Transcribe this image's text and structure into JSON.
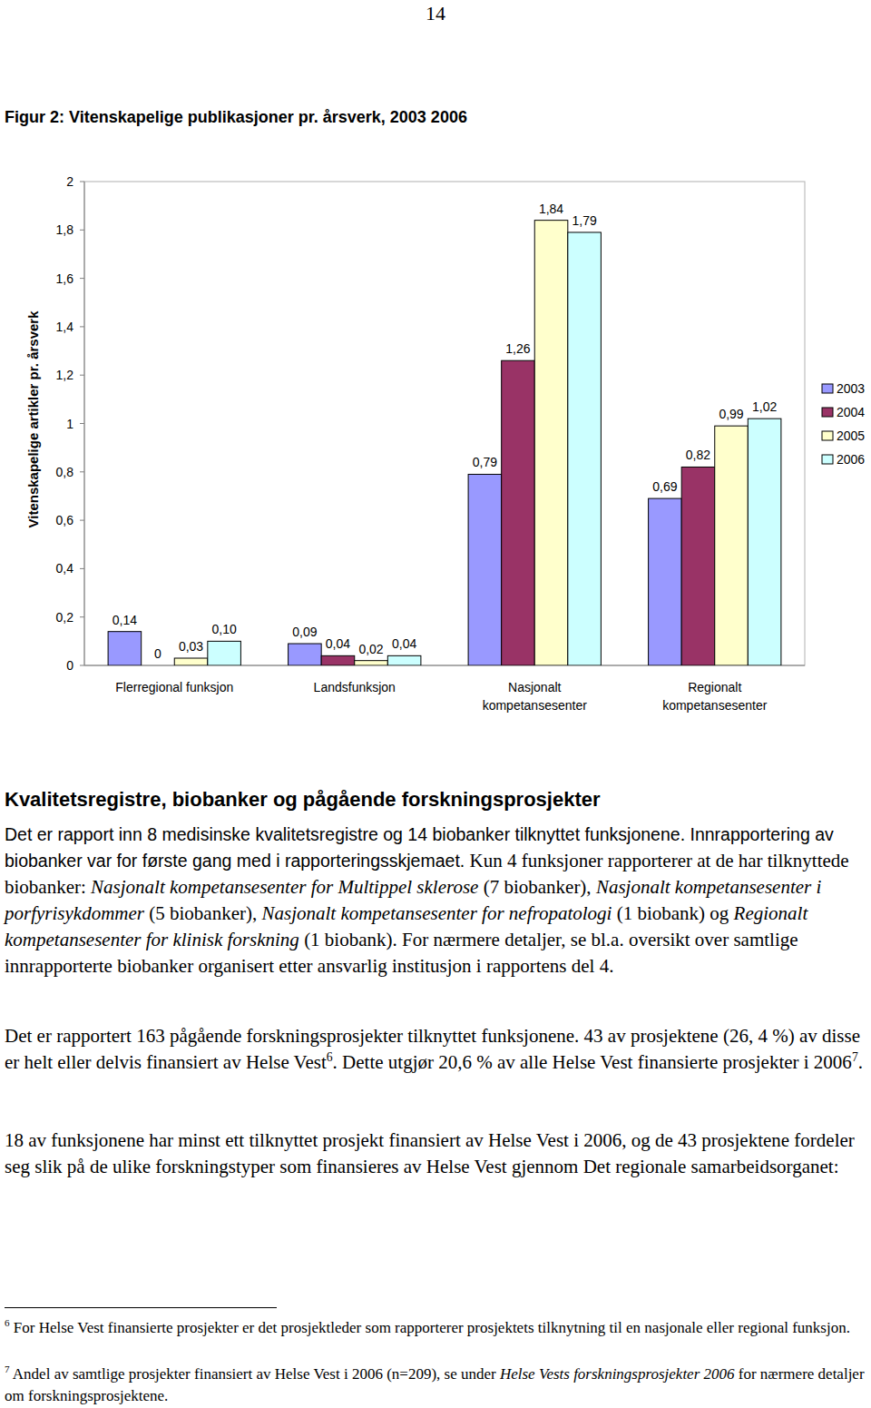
{
  "page_number": "14",
  "chart_data": {
    "type": "bar",
    "title": "Figur 2: Vitenskapelige publikasjoner pr. årsverk, 2003 2006",
    "y_label": "Vitenskapelige artikler pr. årsverk",
    "categories": [
      "Flerregional funksjon",
      "Landsfunksjon",
      "Nasjonalt kompetansesenter",
      "Regionalt kompetansesenter"
    ],
    "series": [
      {
        "name": "2003",
        "color": "#9999ff",
        "values": [
          0.14,
          0.09,
          0.79,
          0.69
        ],
        "value_labels": [
          "0,14",
          "0,09",
          "0,79",
          "0,69"
        ]
      },
      {
        "name": "2004",
        "color": "#993366",
        "values": [
          0,
          0.04,
          1.26,
          0.82
        ],
        "value_labels": [
          "0",
          "0,04",
          "1,26",
          "0,82"
        ]
      },
      {
        "name": "2005",
        "color": "#ffffcc",
        "values": [
          0.03,
          0.02,
          1.84,
          0.99
        ],
        "value_labels": [
          "0,03",
          "0,02",
          "1,84",
          "0,99"
        ]
      },
      {
        "name": "2006",
        "color": "#ccffff",
        "values": [
          0.1,
          0.04,
          1.79,
          1.02
        ],
        "value_labels": [
          "0,10",
          "0,04",
          "1,79",
          "1,02"
        ]
      }
    ],
    "ylim": [
      0,
      2
    ],
    "yticks": [
      0,
      {
        "value": 0.2,
        "label": "0,2"
      },
      {
        "value": 0.4,
        "label": "0,4"
      },
      {
        "value": 0.6,
        "label": "0,6"
      },
      {
        "value": 0.8,
        "label": "0,8"
      },
      1,
      {
        "value": 1.2,
        "label": "1,2"
      },
      {
        "value": 1.4,
        "label": "1,4"
      },
      {
        "value": 1.6,
        "label": "1,6"
      },
      {
        "value": 1.8,
        "label": "1,8"
      },
      2
    ],
    "grid": false,
    "legend": "right",
    "data_labels": true
  },
  "heading": "Kvalitetsregistre, biobanker og pågående forskningsprosjekter",
  "paragraphs": [
    {
      "runs": [
        {
          "text": "Det er rapport inn 8 medisinske kvalitetsregistre og 14 biobanker tilknyttet funksjonene. Innrapportering av biobanker var for første gang med i rapporteringsskjemaet.",
          "style": "sans"
        },
        {
          "text": " Kun 4 funksjoner rapporterer at de har tilknyttede biobanker: ",
          "style": "normal"
        },
        {
          "text": "Nasjonalt kompetansesenter for Multippel sklerose",
          "style": "italic"
        },
        {
          "text": " (7 biobanker), ",
          "style": "normal"
        },
        {
          "text": "Nasjonalt kompetansesenter i porfyrisykdommer",
          "style": "italic"
        },
        {
          "text": " (5 biobanker), ",
          "style": "normal"
        },
        {
          "text": "Nasjonalt kompetansesenter for nefropatologi",
          "style": "italic"
        },
        {
          "text": " (1 biobank) og ",
          "style": "normal"
        },
        {
          "text": "Regionalt kompetansesenter for klinisk forskning",
          "style": "italic"
        },
        {
          "text": " (1 biobank). For nærmere detaljer, se bl.a. oversikt over samtlige innrapporterte biobanker organisert etter ansvarlig institusjon i rapportens del 4.",
          "style": "normal"
        }
      ]
    },
    {
      "runs": [
        {
          "text": "Det er rapportert 163 pågående forskningsprosjekter tilknyttet funksjonene. 43 av prosjektene (26, 4 %) av disse er helt eller delvis finansiert av Helse Vest",
          "style": "normal"
        },
        {
          "text": "6",
          "style": "sup"
        },
        {
          "text": ". Dette utgjør 20,6 % av alle Helse Vest finansierte prosjekter i 2006",
          "style": "normal"
        },
        {
          "text": "7",
          "style": "sup"
        },
        {
          "text": ".",
          "style": "normal"
        }
      ]
    },
    {
      "runs": [
        {
          "text": "18 av funksjonene har minst ett tilknyttet prosjekt finansiert av Helse Vest i 2006, og de 43 prosjektene fordeler seg slik på de ulike forskningstyper som finansieres av Helse Vest gjennom Det regionale samarbeidsorganet:",
          "style": "normal"
        }
      ]
    }
  ],
  "footnotes": [
    {
      "marker": "6",
      "runs": [
        {
          "text": " For Helse Vest finansierte prosjekter er det prosjektleder som rapporterer prosjektets tilknytning til en nasjonale eller regional funksjon.",
          "style": "normal"
        }
      ]
    },
    {
      "marker": "7",
      "runs": [
        {
          "text": " Andel av samtlige prosjekter finansiert av Helse Vest i 2006 (n=209), se under ",
          "style": "normal"
        },
        {
          "text": "Helse Vests forskningsprosjekter 2006",
          "style": "italic"
        },
        {
          "text": " for nærmere detaljer om forskningsprosjektene.",
          "style": "normal"
        }
      ]
    }
  ]
}
